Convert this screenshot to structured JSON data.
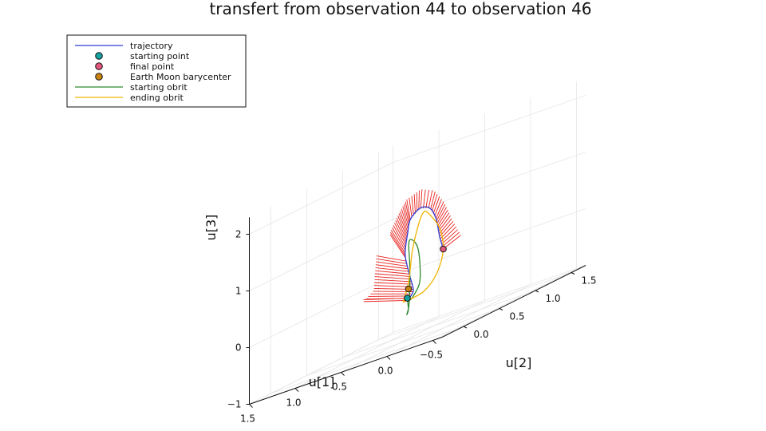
{
  "chart_data": {
    "type": "line",
    "projection": "3d",
    "title": "transfert from observation 44 to observation 46",
    "xlabel": "u[1]",
    "ylabel": "u[2]",
    "zlabel": "u[3]",
    "x_ticks": [
      "−0.5",
      "0.0",
      "0.5",
      "1.0",
      "1.5"
    ],
    "y_ticks": [
      "0.0",
      "0.5",
      "1.0",
      "1.5"
    ],
    "z_ticks": [
      "−1",
      "0",
      "1",
      "2"
    ],
    "xlim": [
      -0.6,
      1.5
    ],
    "ylim": [
      -0.3,
      1.7
    ],
    "zlim": [
      -1.0,
      2.3
    ],
    "legend_position": "top-left",
    "legend": [
      {
        "label": "trajectory",
        "kind": "line",
        "color": "#2f3bd6"
      },
      {
        "label": "starting point",
        "kind": "marker",
        "color": "#16a2a2"
      },
      {
        "label": "final point",
        "kind": "marker",
        "color": "#e0577b"
      },
      {
        "label": "Earth Moon barycenter",
        "kind": "marker",
        "color": "#c98410"
      },
      {
        "label": "starting obrit",
        "kind": "line",
        "color": "#2f8a2f"
      },
      {
        "label": "ending obrit",
        "kind": "line",
        "color": "#f0b400"
      }
    ],
    "series": [
      {
        "name": "trajectory",
        "color": "#2f3bd6",
        "points": [
          [
            0.6,
            0.75,
            -0.3
          ],
          [
            0.45,
            0.55,
            -0.3
          ],
          [
            0.3,
            0.45,
            -0.15
          ],
          [
            0.3,
            0.4,
            0.15
          ],
          [
            0.35,
            0.4,
            0.55
          ],
          [
            0.4,
            0.5,
            0.9
          ],
          [
            0.45,
            0.6,
            1.1
          ],
          [
            0.5,
            0.8,
            1.2
          ],
          [
            0.55,
            1.0,
            1.1
          ],
          [
            0.6,
            1.15,
            0.85
          ],
          [
            0.6,
            1.2,
            0.5
          ],
          [
            0.6,
            1.25,
            0.25
          ]
        ]
      },
      {
        "name": "starting obrit",
        "color": "#2f8a2f",
        "points": [
          [
            0.6,
            0.75,
            -0.3
          ],
          [
            0.55,
            0.7,
            -0.5
          ],
          [
            0.45,
            0.55,
            -0.55
          ],
          [
            0.35,
            0.45,
            -0.4
          ],
          [
            0.3,
            0.4,
            -0.1
          ],
          [
            0.3,
            0.4,
            0.35
          ],
          [
            0.35,
            0.45,
            0.7
          ],
          [
            0.4,
            0.55,
            0.75
          ],
          [
            0.45,
            0.7,
            0.55
          ],
          [
            0.5,
            0.8,
            0.15
          ],
          [
            0.55,
            0.85,
            -0.15
          ],
          [
            0.6,
            0.8,
            -0.35
          ],
          [
            0.6,
            0.75,
            -0.3
          ]
        ]
      },
      {
        "name": "ending obrit",
        "color": "#f0b400",
        "points": [
          [
            0.45,
            0.5,
            -0.3
          ],
          [
            0.35,
            0.45,
            0.05
          ],
          [
            0.35,
            0.5,
            0.55
          ],
          [
            0.4,
            0.65,
            0.95
          ],
          [
            0.5,
            0.85,
            1.1
          ],
          [
            0.6,
            1.05,
            1.0
          ],
          [
            0.6,
            1.2,
            0.65
          ],
          [
            0.6,
            1.25,
            0.25
          ],
          [
            0.55,
            1.1,
            -0.1
          ],
          [
            0.5,
            0.85,
            -0.3
          ],
          [
            0.45,
            0.5,
            -0.3
          ]
        ]
      }
    ],
    "markers": [
      {
        "name": "starting point",
        "point": [
          0.6,
          0.75,
          -0.3
        ],
        "color": "#16a2a2"
      },
      {
        "name": "final point",
        "point": [
          0.6,
          1.25,
          0.25
        ],
        "color": "#e0577b"
      },
      {
        "name": "Earth Moon barycenter",
        "point": [
          0.0,
          0.0,
          0.0
        ],
        "color": "#c98410"
      }
    ],
    "control_arrows": {
      "color": "#e8201c",
      "description_count": 60
    }
  }
}
